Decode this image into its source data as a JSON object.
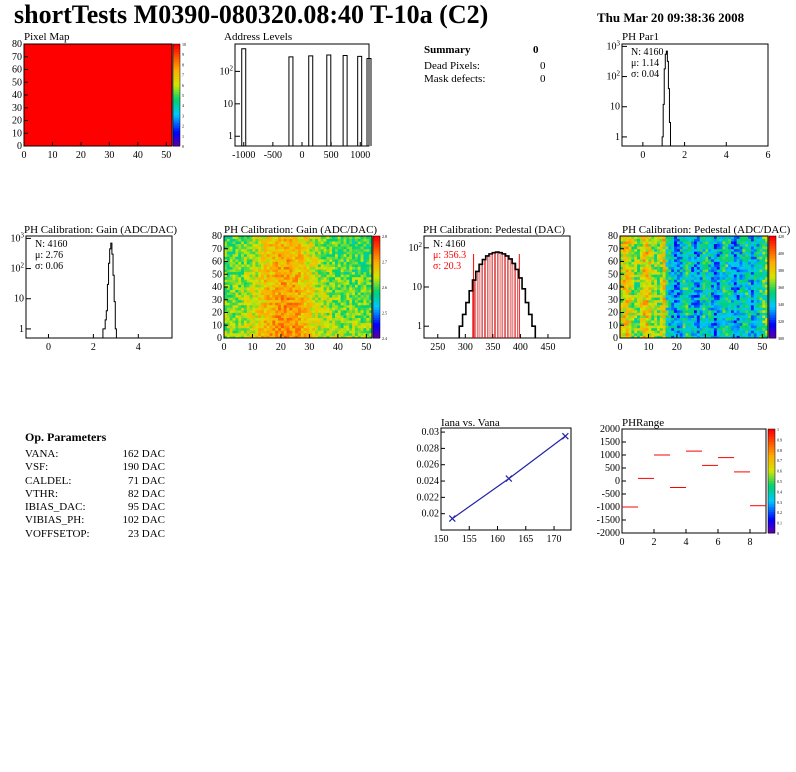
{
  "header": {
    "title": "shortTests M0390-080320.08:40 T-10a (C2)",
    "date": "Thu Mar 20 09:38:36 2008"
  },
  "summary": {
    "title": "Summary",
    "value": "0",
    "rows": [
      {
        "label": "Dead Pixels:",
        "value": "0"
      },
      {
        "label": "Mask defects:",
        "value": "0"
      }
    ]
  },
  "op_params": {
    "title": "Op. Parameters",
    "rows": [
      {
        "label": "VANA:",
        "value": "162 DAC"
      },
      {
        "label": "VSF:",
        "value": "190 DAC"
      },
      {
        "label": "CALDEL:",
        "value": "71 DAC"
      },
      {
        "label": "VTHR:",
        "value": "82 DAC"
      },
      {
        "label": "IBIAS_DAC:",
        "value": "95 DAC"
      },
      {
        "label": "VIBIAS_PH:",
        "value": "102 DAC"
      },
      {
        "label": "VOFFSETOP:",
        "value": "23 DAC"
      }
    ]
  },
  "colors": {
    "red": "#ff0000",
    "black": "#000000",
    "blue_line": "#2222aa",
    "pedestal_fill": "#cc0000"
  },
  "chart_data": [
    {
      "id": "pixel_map",
      "type": "heatmap",
      "title": "Pixel Map",
      "xlim": [
        0,
        52
      ],
      "ylim": [
        0,
        80
      ],
      "xticks": [
        0,
        10,
        20,
        30,
        40,
        50
      ],
      "yticks": [
        0,
        10,
        20,
        30,
        40,
        50,
        60,
        70,
        80
      ],
      "z_uniform": 10,
      "zlim": [
        0,
        10
      ],
      "colorbar_ticks": [
        "10",
        "9",
        "8",
        "7",
        "6",
        "5",
        "4",
        "3",
        "2",
        "1",
        "0"
      ]
    },
    {
      "id": "address_levels",
      "type": "bar",
      "title": "Address Levels",
      "log_y": true,
      "xlim": [
        -1150,
        1150
      ],
      "ylim": [
        0.5,
        700
      ],
      "xticks": [
        "-1000",
        "-500",
        "0",
        "500",
        "1000"
      ],
      "yticks": [
        "1",
        "10",
        "10^2"
      ],
      "peaks": [
        {
          "x": -1000,
          "y": 500
        },
        {
          "x": -190,
          "y": 280
        },
        {
          "x": 150,
          "y": 300
        },
        {
          "x": 460,
          "y": 320
        },
        {
          "x": 740,
          "y": 310
        },
        {
          "x": 990,
          "y": 290
        },
        {
          "x": 1150,
          "y": 250
        }
      ]
    },
    {
      "id": "ph_par1",
      "type": "bar",
      "title": "PH Par1",
      "log_y": true,
      "xlim": [
        -1,
        6
      ],
      "ylim": [
        0.5,
        1200
      ],
      "xticks": [
        "0",
        "2",
        "4",
        "6"
      ],
      "yticks": [
        "1",
        "10",
        "10^2",
        "10^3"
      ],
      "stats": {
        "entries": "N: 4160",
        "mean": "μ: 1.14",
        "rms": "σ: 0.04"
      },
      "x": [
        0.95,
        1.0,
        1.05,
        1.1,
        1.15,
        1.2,
        1.25,
        1.3
      ],
      "values": [
        1,
        12,
        180,
        550,
        700,
        320,
        40,
        3
      ]
    },
    {
      "id": "gain_1d",
      "type": "bar",
      "title": "PH Calibration: Gain (ADC/DAC)",
      "log_y": true,
      "xlim": [
        -1,
        5.5
      ],
      "ylim": [
        0.5,
        1200
      ],
      "xticks": [
        "0",
        "2",
        "4"
      ],
      "yticks": [
        "1",
        "10",
        "10^2",
        "10^3"
      ],
      "stats": {
        "entries": "N: 4160",
        "mean": "μ: 2.76",
        "rms": "σ: 0.06"
      },
      "x": [
        2.45,
        2.5,
        2.55,
        2.6,
        2.65,
        2.7,
        2.75,
        2.8,
        2.85,
        2.9,
        2.95,
        3.0
      ],
      "values": [
        1,
        1,
        2,
        4,
        30,
        150,
        450,
        700,
        300,
        60,
        8,
        1
      ]
    },
    {
      "id": "gain_map",
      "type": "heatmap",
      "title": "PH Calibration: Gain (ADC/DAC)",
      "xlim": [
        0,
        52
      ],
      "ylim": [
        0,
        80
      ],
      "xticks": [
        0,
        10,
        20,
        30,
        40,
        50
      ],
      "yticks": [
        0,
        10,
        20,
        30,
        40,
        50,
        60,
        70,
        80
      ],
      "zlim": [
        2.4,
        2.85
      ],
      "colorbar_ticks": [
        "2.8",
        "2.7",
        "2.6",
        "2.5",
        "2.4"
      ]
    },
    {
      "id": "pedestal_1d",
      "type": "bar",
      "title": "PH Calibration: Pedestal (DAC)",
      "log_y": true,
      "xlim": [
        225,
        490
      ],
      "ylim": [
        0.5,
        200
      ],
      "xticks": [
        "250",
        "300",
        "350",
        "400",
        "450"
      ],
      "yticks": [
        "1",
        "10",
        "10^2"
      ],
      "stats": {
        "entries": "N: 4160",
        "mean": "μ: 356.3",
        "rms": "σ: 20.3"
      },
      "fit_range": [
        315,
        398
      ],
      "x": [
        292,
        298,
        304,
        310,
        316,
        322,
        328,
        334,
        340,
        346,
        352,
        358,
        364,
        370,
        376,
        382,
        388,
        394,
        400,
        406,
        412,
        418,
        424
      ],
      "values": [
        1,
        2,
        4,
        8,
        15,
        25,
        38,
        50,
        62,
        70,
        75,
        78,
        75,
        70,
        62,
        52,
        40,
        28,
        17,
        9,
        4,
        2,
        1
      ]
    },
    {
      "id": "pedestal_map",
      "type": "heatmap",
      "title": "PH Calibration: Pedestal (ADC/DAC)",
      "xlim": [
        0,
        52
      ],
      "ylim": [
        0,
        80
      ],
      "xticks": [
        0,
        10,
        20,
        30,
        40,
        50
      ],
      "yticks": [
        0,
        10,
        20,
        30,
        40,
        50,
        60,
        70,
        80
      ],
      "zlim": [
        300,
        420
      ],
      "colorbar_ticks": [
        "420",
        "400",
        "380",
        "360",
        "340",
        "320",
        "300"
      ]
    },
    {
      "id": "iana_vana",
      "type": "line",
      "title": "Iana vs. Vana",
      "xlim": [
        150,
        173
      ],
      "ylim": [
        0.018,
        0.0305
      ],
      "xticks": [
        "150",
        "155",
        "160",
        "165",
        "170"
      ],
      "yticks": [
        "0.02",
        "0.022",
        "0.024",
        "0.026",
        "0.028",
        "0.03"
      ],
      "x": [
        152,
        162,
        172
      ],
      "values": [
        0.0194,
        0.0243,
        0.0295
      ]
    },
    {
      "id": "ph_range",
      "type": "scatter",
      "title": "PHRange",
      "xlim": [
        0,
        9
      ],
      "ylim": [
        -2000,
        2000
      ],
      "xticks": [
        "0",
        "2",
        "4",
        "6",
        "8"
      ],
      "yticks": [
        "2000",
        "1500",
        "1000",
        "500",
        "0",
        "-500",
        "-1000",
        "-1500",
        "-2000"
      ],
      "x": [
        0.5,
        1.5,
        2.5,
        3.5,
        4.5,
        5.5,
        6.5,
        7.5,
        8.5
      ],
      "values": [
        -1000,
        100,
        1000,
        -250,
        1150,
        600,
        900,
        350,
        -950
      ],
      "colorbar_ticks": [
        "1",
        "0.9",
        "0.8",
        "0.7",
        "0.6",
        "0.5",
        "0.4",
        "0.3",
        "0.2",
        "0.1",
        "0"
      ]
    }
  ]
}
